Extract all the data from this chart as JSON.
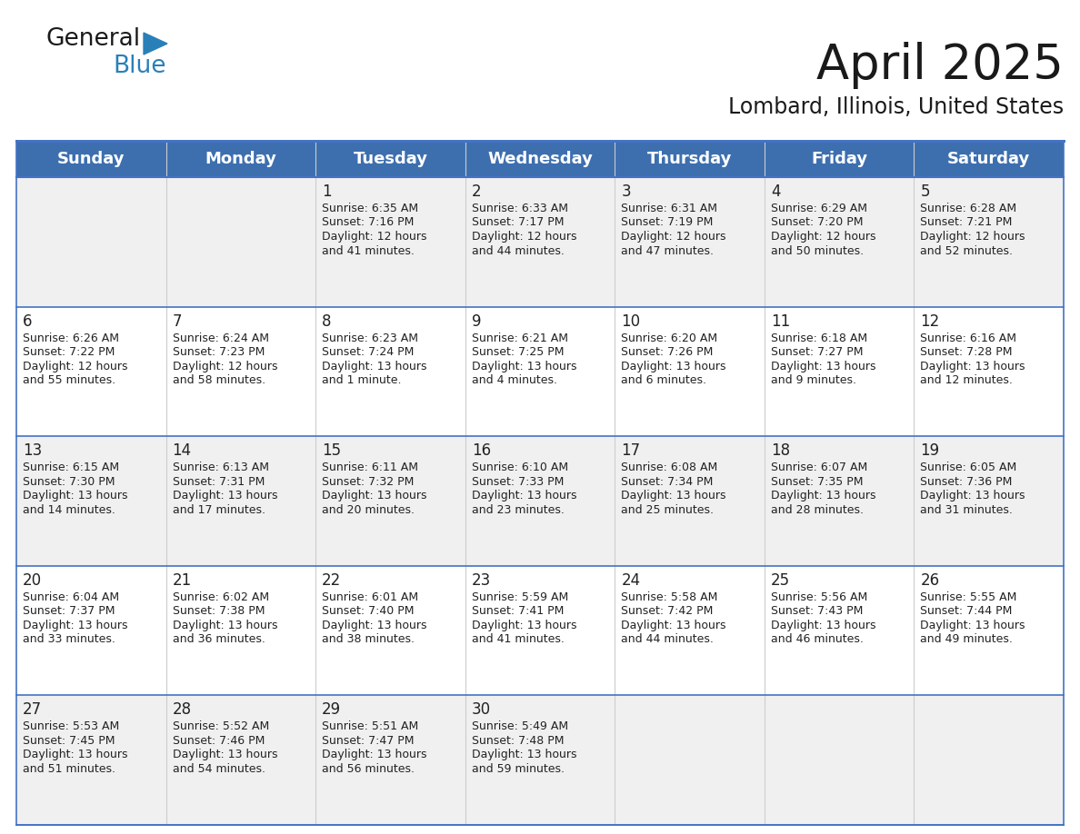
{
  "title": "April 2025",
  "subtitle": "Lombard, Illinois, United States",
  "header_bg": "#3d6faf",
  "header_text_color": "#FFFFFF",
  "cell_bg_white": "#FFFFFF",
  "cell_bg_gray": "#F0F0F0",
  "row_separator_color": "#4472C4",
  "col_separator_color": "#CCCCCC",
  "text_color": "#222222",
  "days_of_week": [
    "Sunday",
    "Monday",
    "Tuesday",
    "Wednesday",
    "Thursday",
    "Friday",
    "Saturday"
  ],
  "weeks": [
    [
      {
        "day": "",
        "info": ""
      },
      {
        "day": "",
        "info": ""
      },
      {
        "day": "1",
        "info": "Sunrise: 6:35 AM\nSunset: 7:16 PM\nDaylight: 12 hours\nand 41 minutes."
      },
      {
        "day": "2",
        "info": "Sunrise: 6:33 AM\nSunset: 7:17 PM\nDaylight: 12 hours\nand 44 minutes."
      },
      {
        "day": "3",
        "info": "Sunrise: 6:31 AM\nSunset: 7:19 PM\nDaylight: 12 hours\nand 47 minutes."
      },
      {
        "day": "4",
        "info": "Sunrise: 6:29 AM\nSunset: 7:20 PM\nDaylight: 12 hours\nand 50 minutes."
      },
      {
        "day": "5",
        "info": "Sunrise: 6:28 AM\nSunset: 7:21 PM\nDaylight: 12 hours\nand 52 minutes."
      }
    ],
    [
      {
        "day": "6",
        "info": "Sunrise: 6:26 AM\nSunset: 7:22 PM\nDaylight: 12 hours\nand 55 minutes."
      },
      {
        "day": "7",
        "info": "Sunrise: 6:24 AM\nSunset: 7:23 PM\nDaylight: 12 hours\nand 58 minutes."
      },
      {
        "day": "8",
        "info": "Sunrise: 6:23 AM\nSunset: 7:24 PM\nDaylight: 13 hours\nand 1 minute."
      },
      {
        "day": "9",
        "info": "Sunrise: 6:21 AM\nSunset: 7:25 PM\nDaylight: 13 hours\nand 4 minutes."
      },
      {
        "day": "10",
        "info": "Sunrise: 6:20 AM\nSunset: 7:26 PM\nDaylight: 13 hours\nand 6 minutes."
      },
      {
        "day": "11",
        "info": "Sunrise: 6:18 AM\nSunset: 7:27 PM\nDaylight: 13 hours\nand 9 minutes."
      },
      {
        "day": "12",
        "info": "Sunrise: 6:16 AM\nSunset: 7:28 PM\nDaylight: 13 hours\nand 12 minutes."
      }
    ],
    [
      {
        "day": "13",
        "info": "Sunrise: 6:15 AM\nSunset: 7:30 PM\nDaylight: 13 hours\nand 14 minutes."
      },
      {
        "day": "14",
        "info": "Sunrise: 6:13 AM\nSunset: 7:31 PM\nDaylight: 13 hours\nand 17 minutes."
      },
      {
        "day": "15",
        "info": "Sunrise: 6:11 AM\nSunset: 7:32 PM\nDaylight: 13 hours\nand 20 minutes."
      },
      {
        "day": "16",
        "info": "Sunrise: 6:10 AM\nSunset: 7:33 PM\nDaylight: 13 hours\nand 23 minutes."
      },
      {
        "day": "17",
        "info": "Sunrise: 6:08 AM\nSunset: 7:34 PM\nDaylight: 13 hours\nand 25 minutes."
      },
      {
        "day": "18",
        "info": "Sunrise: 6:07 AM\nSunset: 7:35 PM\nDaylight: 13 hours\nand 28 minutes."
      },
      {
        "day": "19",
        "info": "Sunrise: 6:05 AM\nSunset: 7:36 PM\nDaylight: 13 hours\nand 31 minutes."
      }
    ],
    [
      {
        "day": "20",
        "info": "Sunrise: 6:04 AM\nSunset: 7:37 PM\nDaylight: 13 hours\nand 33 minutes."
      },
      {
        "day": "21",
        "info": "Sunrise: 6:02 AM\nSunset: 7:38 PM\nDaylight: 13 hours\nand 36 minutes."
      },
      {
        "day": "22",
        "info": "Sunrise: 6:01 AM\nSunset: 7:40 PM\nDaylight: 13 hours\nand 38 minutes."
      },
      {
        "day": "23",
        "info": "Sunrise: 5:59 AM\nSunset: 7:41 PM\nDaylight: 13 hours\nand 41 minutes."
      },
      {
        "day": "24",
        "info": "Sunrise: 5:58 AM\nSunset: 7:42 PM\nDaylight: 13 hours\nand 44 minutes."
      },
      {
        "day": "25",
        "info": "Sunrise: 5:56 AM\nSunset: 7:43 PM\nDaylight: 13 hours\nand 46 minutes."
      },
      {
        "day": "26",
        "info": "Sunrise: 5:55 AM\nSunset: 7:44 PM\nDaylight: 13 hours\nand 49 minutes."
      }
    ],
    [
      {
        "day": "27",
        "info": "Sunrise: 5:53 AM\nSunset: 7:45 PM\nDaylight: 13 hours\nand 51 minutes."
      },
      {
        "day": "28",
        "info": "Sunrise: 5:52 AM\nSunset: 7:46 PM\nDaylight: 13 hours\nand 54 minutes."
      },
      {
        "day": "29",
        "info": "Sunrise: 5:51 AM\nSunset: 7:47 PM\nDaylight: 13 hours\nand 56 minutes."
      },
      {
        "day": "30",
        "info": "Sunrise: 5:49 AM\nSunset: 7:48 PM\nDaylight: 13 hours\nand 59 minutes."
      },
      {
        "day": "",
        "info": ""
      },
      {
        "day": "",
        "info": ""
      },
      {
        "day": "",
        "info": ""
      }
    ]
  ],
  "logo_text1": "General",
  "logo_text2": "Blue",
  "logo_color1": "#1a1a1a",
  "logo_color2": "#2980B9",
  "logo_triangle_color": "#2980B9",
  "title_fontsize": 38,
  "subtitle_fontsize": 17,
  "header_fontsize": 13,
  "day_num_fontsize": 12,
  "info_fontsize": 9
}
